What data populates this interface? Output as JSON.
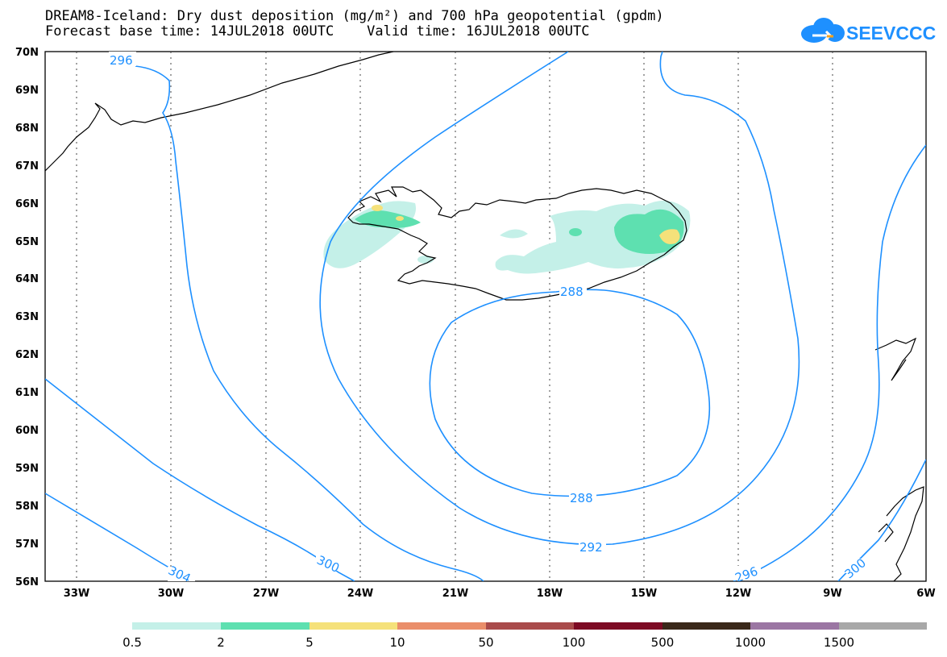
{
  "title": {
    "line1": "DREAM8-Iceland: Dry dust deposition (mg/m²) and 700 hPa geopotential (gpdm)",
    "line2": "Forecast base time: 14JUL2018 00UTC    Valid time: 16JUL2018 00UTC"
  },
  "logo": {
    "text": "SEEVCCC",
    "icon": "cloud-icon",
    "color": "#1e90ff"
  },
  "map": {
    "lat_labels": [
      "70N",
      "69N",
      "68N",
      "67N",
      "66N",
      "65N",
      "64N",
      "63N",
      "62N",
      "61N",
      "60N",
      "59N",
      "58N",
      "57N",
      "56N"
    ],
    "lon_labels": [
      "33W",
      "30W",
      "27W",
      "24W",
      "21W",
      "18W",
      "15W",
      "12W",
      "9W",
      "6W"
    ],
    "contour_color": "#1e90ff",
    "contour_labels": [
      "296",
      "288",
      "288",
      "292",
      "296",
      "300",
      "300",
      "304"
    ]
  },
  "legend": {
    "labels": [
      "0.5",
      "2",
      "5",
      "10",
      "50",
      "100",
      "500",
      "1000",
      "1500"
    ],
    "colors": [
      "#c4f0e8",
      "#5ee0b0",
      "#f5e17a",
      "#ea8e6a",
      "#a94b4b",
      "#7d0a24",
      "#3a281a",
      "#9b76a3",
      "#a8a8a8"
    ]
  }
}
